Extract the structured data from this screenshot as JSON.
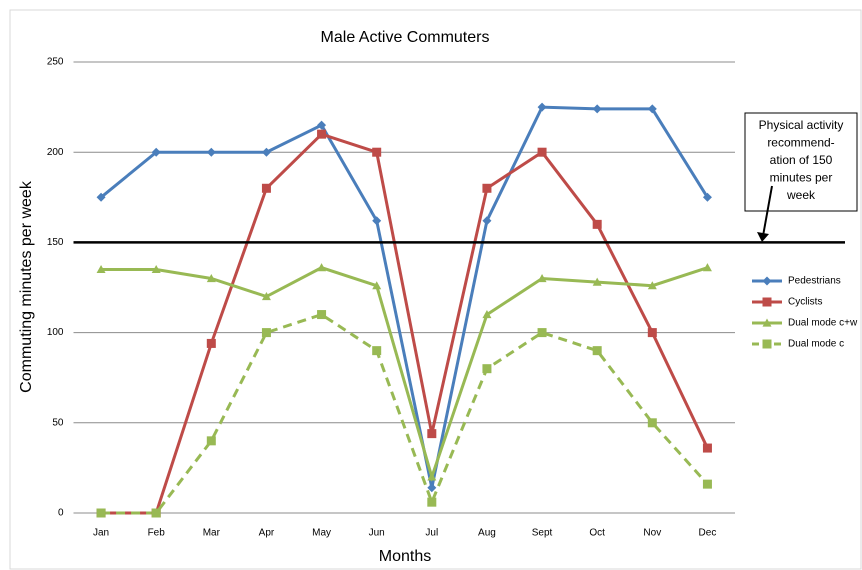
{
  "chart_data": {
    "type": "line",
    "title": "Male Active Commuters",
    "x_label": "Months",
    "y_label": "Commuting minutes per week",
    "categories": [
      "Jan",
      "Feb",
      "Mar",
      "Apr",
      "May",
      "Jun",
      "Jul",
      "Aug",
      "Sept",
      "Oct",
      "Nov",
      "Dec"
    ],
    "series": [
      {
        "name": "Pedestrians",
        "color": "#4a7ebb",
        "marker": "diamond",
        "dashed": false,
        "values": [
          175,
          200,
          200,
          200,
          215,
          162,
          14,
          162,
          225,
          224,
          224,
          175
        ]
      },
      {
        "name": "Cyclists",
        "color": "#be4b48",
        "marker": "square",
        "dashed": false,
        "values": [
          0,
          0,
          94,
          180,
          210,
          200,
          44,
          180,
          200,
          160,
          100,
          36
        ]
      },
      {
        "name": "Dual mode c+w",
        "color": "#98b954",
        "marker": "triangle",
        "dashed": false,
        "values": [
          135,
          135,
          130,
          120,
          136,
          126,
          20,
          110,
          130,
          128,
          126,
          136
        ]
      },
      {
        "name": "Dual mode c",
        "color": "#98b954",
        "marker": "square",
        "dashed": true,
        "values": [
          0,
          0,
          40,
          100,
          110,
          90,
          6,
          80,
          100,
          90,
          50,
          16
        ]
      }
    ],
    "ylim": [
      0,
      250
    ],
    "yticks": [
      0,
      50,
      100,
      150,
      200,
      250
    ],
    "grid": true,
    "hline": 150,
    "annotation": [
      "Physical activity",
      "recommend-",
      "ation of 150",
      "minutes per",
      "week"
    ],
    "legend": "right"
  }
}
